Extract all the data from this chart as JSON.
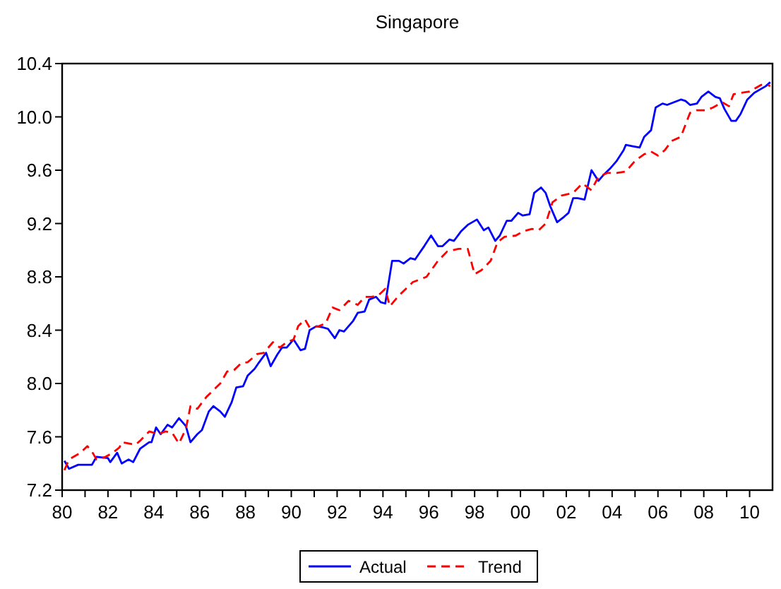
{
  "chart_data": {
    "type": "line",
    "title": "Singapore",
    "xlim": [
      1980,
      2011
    ],
    "ylim": [
      7.2,
      10.4
    ],
    "yticks": [
      {
        "value": 7.2,
        "label": "7.2"
      },
      {
        "value": 7.6,
        "label": "7.6"
      },
      {
        "value": 8.0,
        "label": "8.0"
      },
      {
        "value": 8.4,
        "label": "8.4"
      },
      {
        "value": 8.8,
        "label": "8.8"
      },
      {
        "value": 9.2,
        "label": "9.2"
      },
      {
        "value": 9.6,
        "label": "9.6"
      },
      {
        "value": 10.0,
        "label": "10.0"
      },
      {
        "value": 10.4,
        "label": "10.4"
      }
    ],
    "xticks": [
      {
        "value": 1980,
        "label": "80"
      },
      {
        "value": 1981,
        "label": null
      },
      {
        "value": 1982,
        "label": "82"
      },
      {
        "value": 1983,
        "label": null
      },
      {
        "value": 1984,
        "label": "84"
      },
      {
        "value": 1985,
        "label": null
      },
      {
        "value": 1986,
        "label": "86"
      },
      {
        "value": 1987,
        "label": null
      },
      {
        "value": 1988,
        "label": "88"
      },
      {
        "value": 1989,
        "label": null
      },
      {
        "value": 1990,
        "label": "90"
      },
      {
        "value": 1991,
        "label": null
      },
      {
        "value": 1992,
        "label": "92"
      },
      {
        "value": 1993,
        "label": null
      },
      {
        "value": 1994,
        "label": "94"
      },
      {
        "value": 1995,
        "label": null
      },
      {
        "value": 1996,
        "label": "96"
      },
      {
        "value": 1997,
        "label": null
      },
      {
        "value": 1998,
        "label": "98"
      },
      {
        "value": 1999,
        "label": null
      },
      {
        "value": 2000,
        "label": "00"
      },
      {
        "value": 2001,
        "label": null
      },
      {
        "value": 2002,
        "label": "02"
      },
      {
        "value": 2003,
        "label": null
      },
      {
        "value": 2004,
        "label": "04"
      },
      {
        "value": 2005,
        "label": null
      },
      {
        "value": 2006,
        "label": "06"
      },
      {
        "value": 2007,
        "label": null
      },
      {
        "value": 2008,
        "label": "08"
      },
      {
        "value": 2009,
        "label": null
      },
      {
        "value": 2010,
        "label": "10"
      }
    ],
    "grid": false,
    "legend": "bottom",
    "marker": "none",
    "series": [
      {
        "name": "Actual",
        "color": "#0000ff",
        "line_style": "solid",
        "x": [
          1980.1,
          1980.3,
          1980.7,
          1981.3,
          1981.5,
          1982.0,
          1982.1,
          1982.4,
          1982.6,
          1982.9,
          1983.1,
          1983.4,
          1983.8,
          1983.9,
          1984.1,
          1984.3,
          1984.6,
          1984.8,
          1985.1,
          1985.4,
          1985.6,
          1985.9,
          1986.1,
          1986.4,
          1986.6,
          1986.9,
          1987.1,
          1987.4,
          1987.6,
          1987.9,
          1988.1,
          1988.4,
          1988.6,
          1988.9,
          1989.1,
          1989.4,
          1989.6,
          1989.8,
          1990.1,
          1990.4,
          1990.6,
          1990.8,
          1991.1,
          1991.4,
          1991.6,
          1991.9,
          1992.1,
          1992.3,
          1992.7,
          1992.9,
          1993.2,
          1993.4,
          1993.7,
          1993.9,
          1994.1,
          1994.4,
          1994.7,
          1994.9,
          1995.2,
          1995.4,
          1995.6,
          1995.8,
          1996.1,
          1996.4,
          1996.6,
          1996.9,
          1997.1,
          1997.4,
          1997.7,
          1998.1,
          1998.4,
          1998.6,
          1998.9,
          1999.1,
          1999.4,
          1999.6,
          1999.9,
          2000.1,
          2000.4,
          2000.6,
          2000.9,
          2001.1,
          2001.3,
          2001.6,
          2001.9,
          2002.1,
          2002.3,
          2002.5,
          2002.8,
          2003.1,
          2003.4,
          2003.6,
          2003.9,
          2004.2,
          2004.5,
          2004.6,
          2004.9,
          2005.2,
          2005.4,
          2005.7,
          2005.9,
          2006.2,
          2006.4,
          2006.7,
          2007.0,
          2007.2,
          2007.4,
          2007.7,
          2007.9,
          2008.2,
          2008.5,
          2008.7,
          2008.9,
          2009.2,
          2009.4,
          2009.6,
          2009.9,
          2010.2,
          2010.5,
          2010.7,
          2010.9
        ],
        "values": [
          7.42,
          7.36,
          7.39,
          7.39,
          7.45,
          7.44,
          7.41,
          7.48,
          7.4,
          7.43,
          7.41,
          7.51,
          7.56,
          7.56,
          7.67,
          7.62,
          7.69,
          7.67,
          7.74,
          7.68,
          7.56,
          7.62,
          7.65,
          7.79,
          7.83,
          7.79,
          7.75,
          7.86,
          7.97,
          7.98,
          8.06,
          8.11,
          8.16,
          8.23,
          8.13,
          8.22,
          8.27,
          8.27,
          8.33,
          8.25,
          8.26,
          8.4,
          8.43,
          8.42,
          8.41,
          8.34,
          8.4,
          8.39,
          8.47,
          8.53,
          8.54,
          8.63,
          8.65,
          8.61,
          8.6,
          8.92,
          8.92,
          8.9,
          8.94,
          8.93,
          8.98,
          9.03,
          9.11,
          9.03,
          9.03,
          9.08,
          9.07,
          9.14,
          9.19,
          9.23,
          9.15,
          9.17,
          9.07,
          9.11,
          9.22,
          9.22,
          9.28,
          9.26,
          9.27,
          9.43,
          9.47,
          9.43,
          9.33,
          9.21,
          9.25,
          9.28,
          9.39,
          9.39,
          9.38,
          9.6,
          9.52,
          9.56,
          9.61,
          9.67,
          9.75,
          9.79,
          9.78,
          9.77,
          9.85,
          9.9,
          10.07,
          10.1,
          10.09,
          10.11,
          10.13,
          10.12,
          10.09,
          10.1,
          10.15,
          10.19,
          10.15,
          10.14,
          10.06,
          9.97,
          9.97,
          10.02,
          10.13,
          10.18,
          10.21,
          10.23,
          10.26
        ]
      },
      {
        "name": "Trend",
        "color": "#ff0000",
        "line_style": "dashed",
        "x": [
          1980.1,
          1980.3,
          1980.5,
          1980.8,
          1981.1,
          1981.3,
          1981.5,
          1981.9,
          1982.2,
          1982.5,
          1982.6,
          1982.9,
          1983.2,
          1983.4,
          1983.8,
          1984.2,
          1984.5,
          1984.8,
          1985.1,
          1985.4,
          1985.6,
          1985.9,
          1986.3,
          1986.6,
          1986.9,
          1987.2,
          1987.5,
          1987.8,
          1988.1,
          1988.5,
          1988.8,
          1989.2,
          1989.5,
          1989.8,
          1990.1,
          1990.3,
          1990.6,
          1990.8,
          1991.2,
          1991.5,
          1991.8,
          1992.1,
          1992.5,
          1992.9,
          1993.2,
          1993.5,
          1993.8,
          1994.1,
          1994.3,
          1994.7,
          1995.3,
          1995.9,
          1996.4,
          1996.8,
          1997.3,
          1997.7,
          1998.0,
          1998.3,
          1998.7,
          1999.0,
          1999.3,
          1999.8,
          2000.1,
          2000.5,
          2000.8,
          2001.1,
          2001.4,
          2001.8,
          2002.3,
          2002.7,
          2003.1,
          2003.4,
          2003.8,
          2004.2,
          2004.6,
          2005.0,
          2005.4,
          2005.7,
          2006.0,
          2006.3,
          2006.6,
          2007.0,
          2007.4,
          2007.7,
          2008.1,
          2008.4,
          2008.8,
          2009.1,
          2009.3,
          2009.6,
          2010.0,
          2010.5,
          2010.8,
          2010.9
        ],
        "values": [
          7.35,
          7.43,
          7.45,
          7.48,
          7.53,
          7.49,
          7.43,
          7.45,
          7.48,
          7.52,
          7.56,
          7.55,
          7.54,
          7.57,
          7.64,
          7.62,
          7.64,
          7.63,
          7.55,
          7.66,
          7.83,
          7.81,
          7.9,
          7.95,
          8.0,
          8.09,
          8.1,
          8.15,
          8.16,
          8.22,
          8.23,
          8.31,
          8.27,
          8.31,
          8.33,
          8.43,
          8.48,
          8.42,
          8.43,
          8.45,
          8.57,
          8.55,
          8.62,
          8.59,
          8.65,
          8.65,
          8.66,
          8.71,
          8.58,
          8.66,
          8.76,
          8.8,
          8.92,
          8.99,
          9.01,
          9.01,
          8.82,
          8.85,
          8.92,
          9.06,
          9.1,
          9.11,
          9.14,
          9.16,
          9.15,
          9.2,
          9.36,
          9.41,
          9.43,
          9.5,
          9.45,
          9.55,
          9.58,
          9.58,
          9.59,
          9.67,
          9.72,
          9.74,
          9.71,
          9.75,
          9.82,
          9.85,
          10.03,
          10.05,
          10.05,
          10.07,
          10.11,
          10.08,
          10.17,
          10.18,
          10.19,
          10.24,
          10.24,
          10.23
        ]
      }
    ]
  }
}
